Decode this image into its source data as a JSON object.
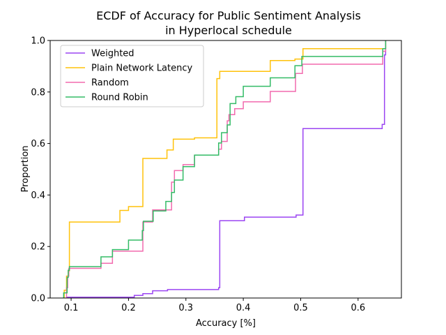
{
  "chart_data": {
    "type": "line",
    "step": "post",
    "title_lines": [
      "ECDF of Accuracy for Public Sentiment Analysis",
      "in Hyperlocal schedule"
    ],
    "xlabel": "Accuracy [%]",
    "ylabel": "Proportion",
    "xlim": [
      0.0635,
      0.6755
    ],
    "ylim": [
      0.0,
      1.0
    ],
    "xticks": [
      0.1,
      0.2,
      0.3,
      0.4,
      0.5,
      0.6
    ],
    "xtick_labels": [
      "0.1",
      "0.2",
      "0.3",
      "0.4",
      "0.5",
      "0.6"
    ],
    "yticks": [
      0.0,
      0.2,
      0.4,
      0.6,
      0.8,
      1.0
    ],
    "ytick_labels": [
      "0.0",
      "0.2",
      "0.4",
      "0.6",
      "0.8",
      "1.0"
    ],
    "grid": false,
    "legend_position": "upper-left",
    "series": [
      {
        "name": "Weighted",
        "color": "#9b45f2",
        "x": [
          0.092,
          0.21,
          0.225,
          0.242,
          0.268,
          0.357,
          0.359,
          0.402,
          0.492,
          0.504,
          0.642,
          0.646,
          0.648
        ],
        "y": [
          0.003,
          0.01,
          0.017,
          0.028,
          0.033,
          0.04,
          0.3,
          0.314,
          0.322,
          0.658,
          0.674,
          0.944,
          1.0
        ]
      },
      {
        "name": "Plain Network Latency",
        "color": "#ffc20a",
        "x": [
          0.088,
          0.092,
          0.095,
          0.097,
          0.185,
          0.2,
          0.225,
          0.267,
          0.278,
          0.315,
          0.354,
          0.359,
          0.447,
          0.49,
          0.504,
          0.642,
          0.648
        ],
        "y": [
          0.03,
          0.085,
          0.105,
          0.295,
          0.34,
          0.355,
          0.542,
          0.575,
          0.617,
          0.622,
          0.852,
          0.88,
          0.922,
          0.928,
          0.968,
          0.968,
          1.0
        ]
      },
      {
        "name": "Random",
        "color": "#f26aae",
        "x": [
          0.092,
          0.094,
          0.096,
          0.152,
          0.172,
          0.225,
          0.242,
          0.275,
          0.28,
          0.295,
          0.315,
          0.357,
          0.362,
          0.372,
          0.375,
          0.385,
          0.4,
          0.447,
          0.491,
          0.503,
          0.643,
          0.648
        ],
        "y": [
          0.04,
          0.085,
          0.115,
          0.135,
          0.182,
          0.295,
          0.342,
          0.45,
          0.495,
          0.518,
          0.555,
          0.578,
          0.608,
          0.688,
          0.712,
          0.735,
          0.762,
          0.802,
          0.872,
          0.908,
          0.958,
          1.0
        ]
      },
      {
        "name": "Round Robin",
        "color": "#33bb66",
        "x": [
          0.087,
          0.093,
          0.095,
          0.097,
          0.152,
          0.172,
          0.2,
          0.224,
          0.226,
          0.243,
          0.265,
          0.275,
          0.28,
          0.295,
          0.315,
          0.357,
          0.362,
          0.372,
          0.377,
          0.387,
          0.4,
          0.447,
          0.49,
          0.502,
          0.643,
          0.648
        ],
        "y": [
          0.02,
          0.08,
          0.108,
          0.122,
          0.16,
          0.188,
          0.225,
          0.262,
          0.298,
          0.338,
          0.375,
          0.41,
          0.458,
          0.51,
          0.555,
          0.602,
          0.642,
          0.672,
          0.755,
          0.782,
          0.822,
          0.855,
          0.902,
          0.938,
          0.968,
          1.0
        ]
      }
    ]
  }
}
